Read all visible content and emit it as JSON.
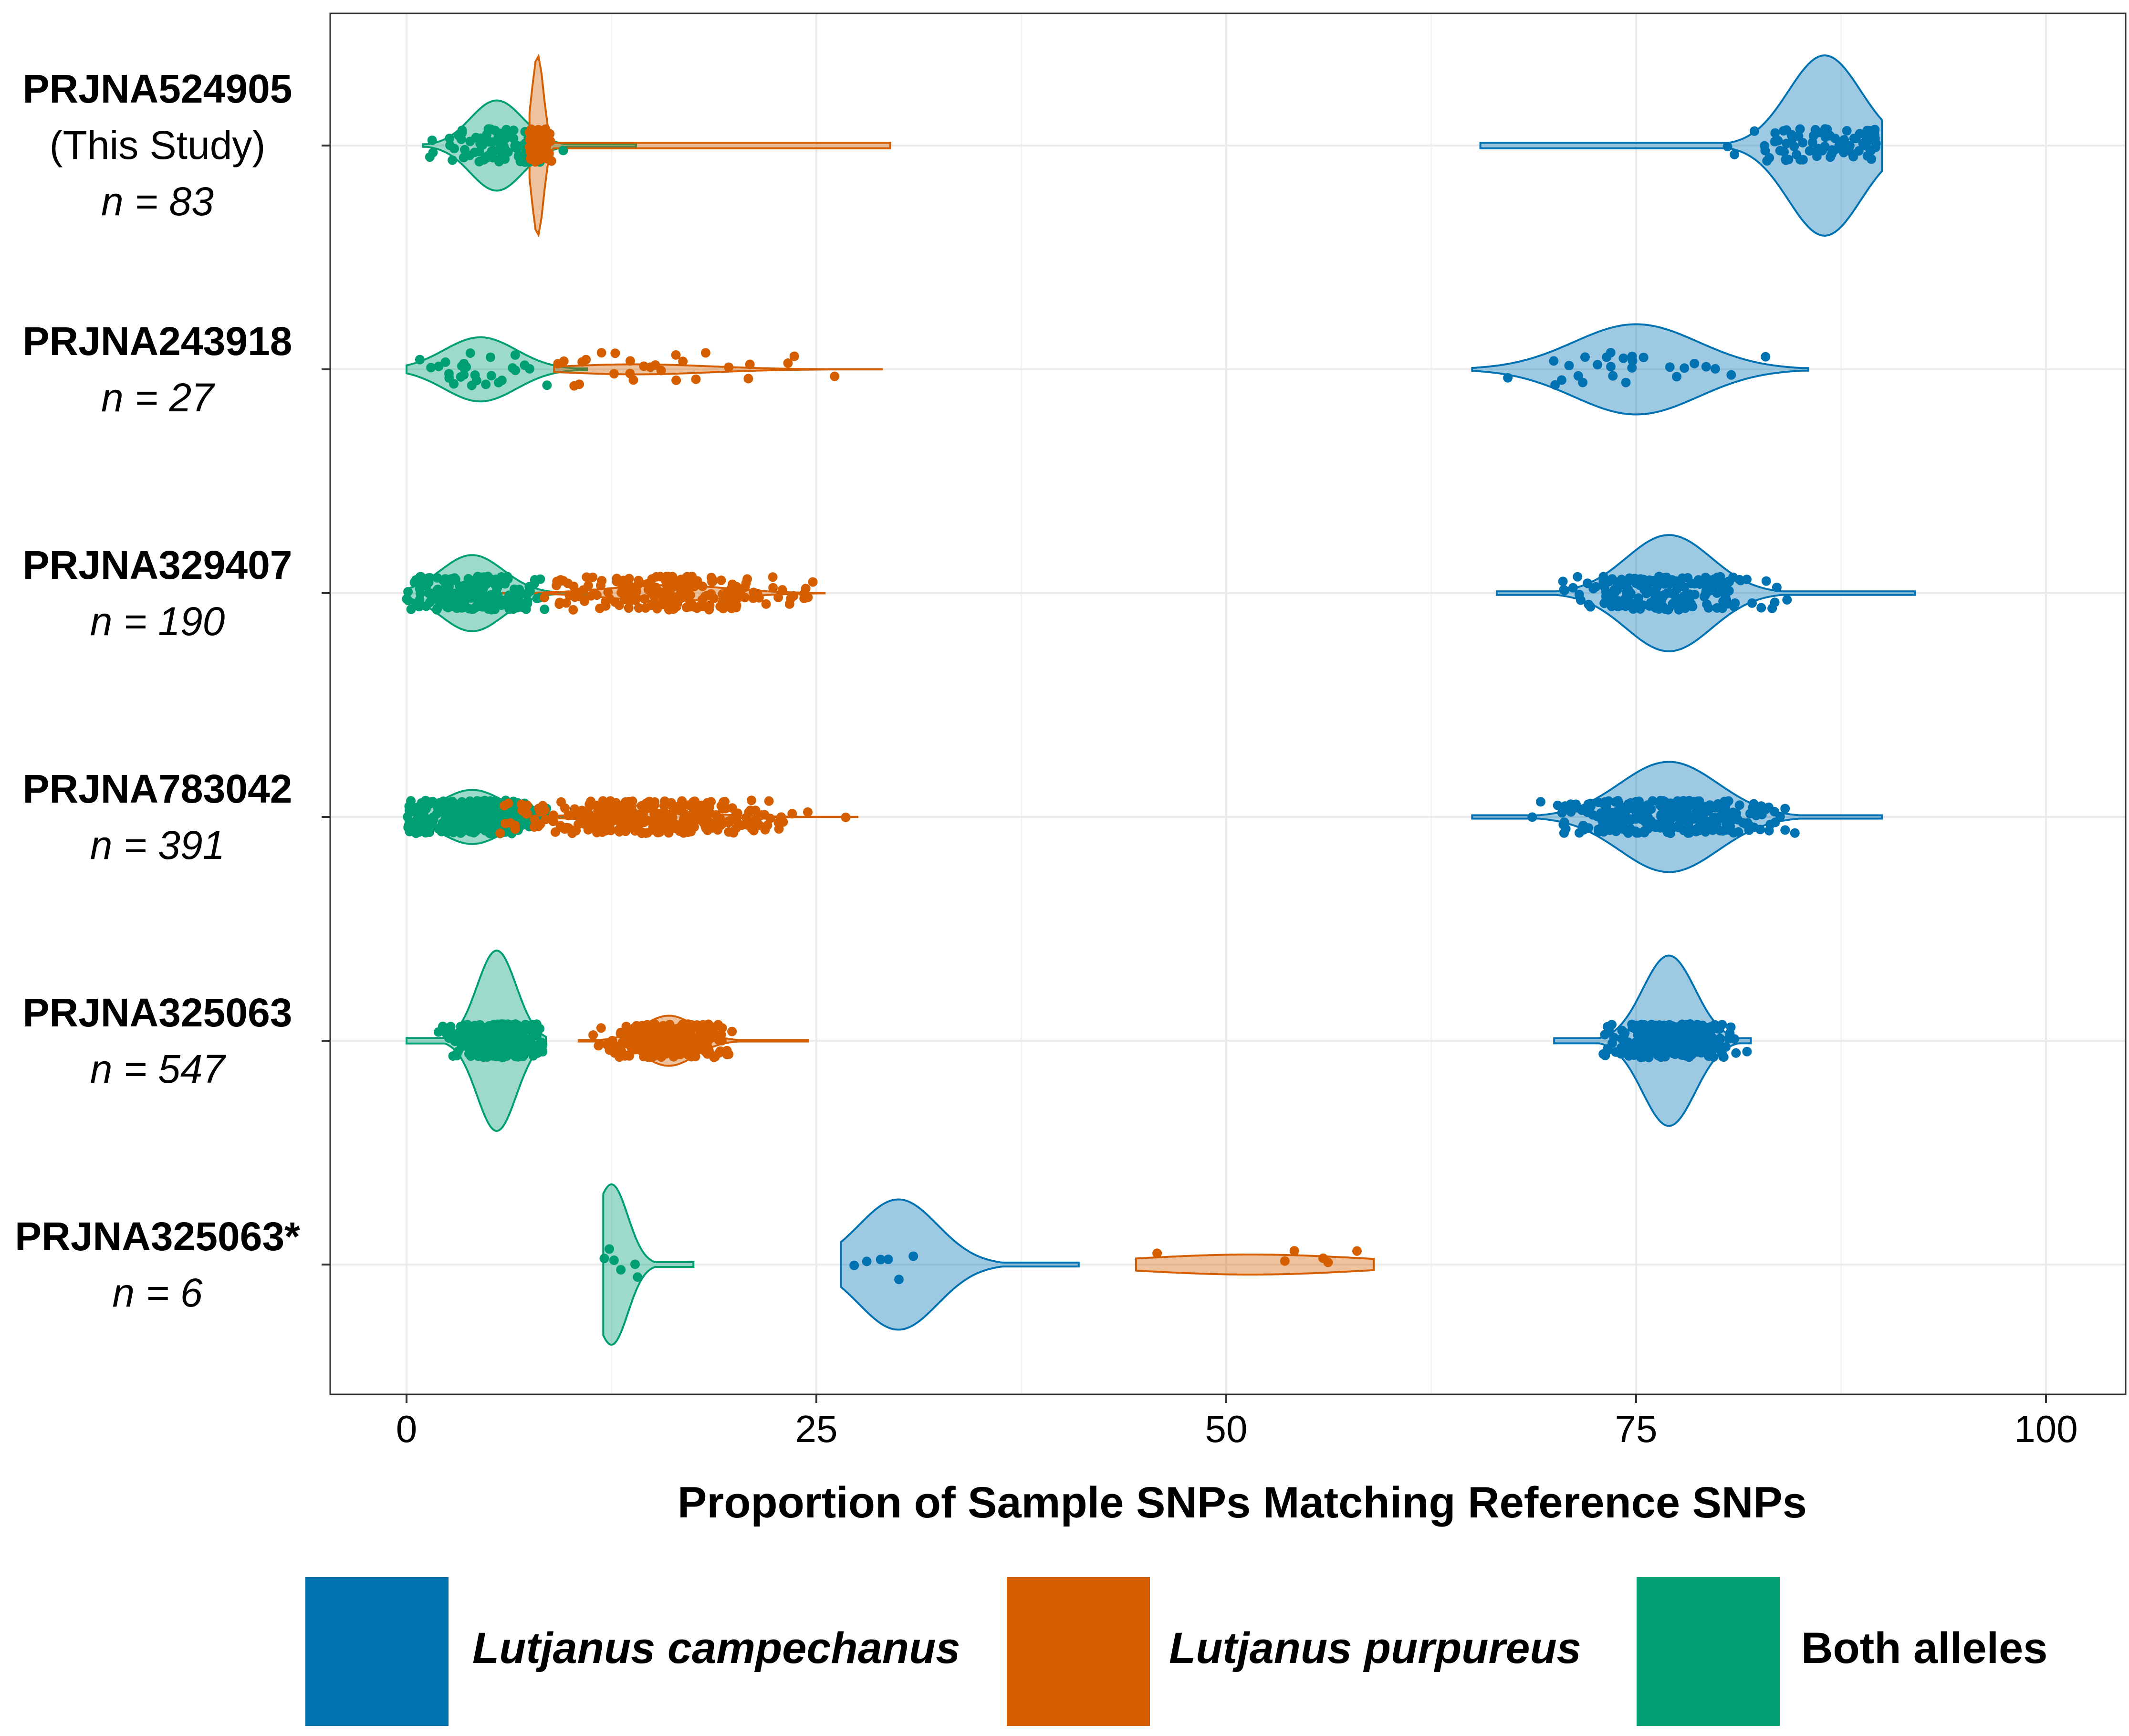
{
  "chart_data": {
    "type": "violin",
    "orientation": "horizontal",
    "title": "",
    "xlabel": "Proportion of Sample SNPs Matching Reference SNPs",
    "ylabel": "",
    "xlim": [
      -5,
      105
    ],
    "xticks": [
      0,
      25,
      50,
      75,
      100
    ],
    "grid": true,
    "colors": {
      "campechanus": "#0072b2",
      "purpureus": "#d55e00",
      "both": "#009e73"
    },
    "legend": {
      "placement": "bottom",
      "entries": [
        {
          "key": "campechanus",
          "label": "Lutjanus campechanus",
          "italic": true
        },
        {
          "key": "purpureus",
          "label": "Lutjanus purpureus",
          "italic": true
        },
        {
          "key": "both",
          "label": "Both alleles",
          "italic": false
        }
      ]
    },
    "groups": [
      {
        "id": "PRJNA524905",
        "label": "PRJNA524905",
        "sublabel": "(This Study)",
        "n_label": "n = 83",
        "n": 83,
        "series": {
          "both": {
            "min": 1,
            "max": 14,
            "mode": 5.5,
            "spread": 1.6,
            "peak": 0.45
          },
          "purpureus": {
            "min": 7.5,
            "max": 29.5,
            "mode": 8,
            "spread": 0.35,
            "peak": 0.9
          },
          "campechanus": {
            "min": 65.5,
            "max": 90,
            "mode": 86.5,
            "spread": 2.2,
            "peak": 0.9
          }
        }
      },
      {
        "id": "PRJNA243918",
        "label": "PRJNA243918",
        "sublabel": "",
        "n_label": "n = 27",
        "n": 27,
        "series": {
          "both": {
            "min": 0,
            "max": 11,
            "mode": 4.5,
            "spread": 2.2,
            "peak": 0.32
          },
          "purpureus": {
            "min": 9,
            "max": 29,
            "mode": 14,
            "spread": 4.5,
            "peak": 0.05
          },
          "campechanus": {
            "min": 65,
            "max": 85.5,
            "mode": 75,
            "spread": 3.8,
            "peak": 0.45
          }
        }
      },
      {
        "id": "PRJNA329407",
        "label": "PRJNA329407",
        "sublabel": "",
        "n_label": "n = 190",
        "n": 190,
        "series": {
          "both": {
            "min": 0,
            "max": 11,
            "mode": 4,
            "spread": 1.9,
            "peak": 0.38
          },
          "purpureus": {
            "min": 5.5,
            "max": 25.5,
            "mode": 16,
            "spread": 3.5,
            "peak": 0.08
          },
          "campechanus": {
            "min": 66.5,
            "max": 92,
            "mode": 77,
            "spread": 2.6,
            "peak": 0.58
          }
        }
      },
      {
        "id": "PRJNA783042",
        "label": "PRJNA783042",
        "sublabel": "",
        "n_label": "n = 391",
        "n": 391,
        "series": {
          "both": {
            "min": 0,
            "max": 13,
            "mode": 4,
            "spread": 1.9,
            "peak": 0.27
          },
          "purpureus": {
            "min": 5.5,
            "max": 27.5,
            "mode": 15,
            "spread": 3.5,
            "peak": 0.05
          },
          "campechanus": {
            "min": 65,
            "max": 90,
            "mode": 77,
            "spread": 3.0,
            "peak": 0.55
          }
        }
      },
      {
        "id": "PRJNA325063",
        "label": "PRJNA325063",
        "sublabel": "",
        "n_label": "n = 547",
        "n": 547,
        "series": {
          "both": {
            "min": 0,
            "max": 8.5,
            "mode": 5.5,
            "spread": 1.2,
            "peak": 0.9
          },
          "purpureus": {
            "min": 10.5,
            "max": 24.5,
            "mode": 16,
            "spread": 1.6,
            "peak": 0.25
          },
          "campechanus": {
            "min": 70,
            "max": 82,
            "mode": 77,
            "spread": 1.6,
            "peak": 0.85
          }
        }
      },
      {
        "id": "PRJNA325063*",
        "label": "PRJNA325063*",
        "sublabel": "",
        "n_label": "n = 6",
        "n": 6,
        "series": {
          "both": {
            "min": 12,
            "max": 17.5,
            "mode": 12.5,
            "spread": 1.0,
            "peak": 0.8
          },
          "campechanus": {
            "min": 26.5,
            "max": 41,
            "mode": 30,
            "spread": 2.4,
            "peak": 0.65
          },
          "purpureus": {
            "min": 44.5,
            "max": 59,
            "mode": 51.5,
            "spread": 7.0,
            "peak": 0.1
          }
        }
      }
    ]
  }
}
